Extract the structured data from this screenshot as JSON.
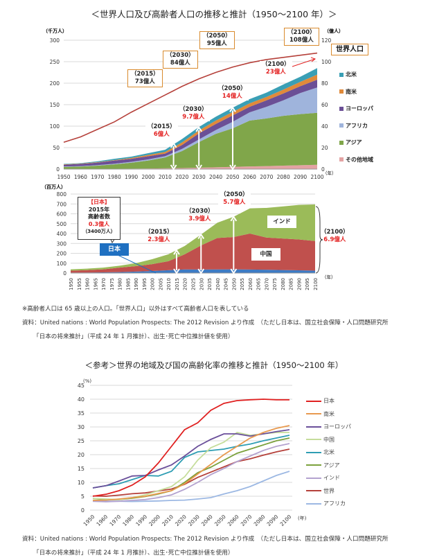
{
  "title1": "＜世界人口及び高齢者人口の推移と推計（1950〜2100 年）＞",
  "chart_data": [
    {
      "type": "area",
      "stacked": true,
      "x": [
        1950,
        1960,
        1970,
        1980,
        1990,
        2000,
        2010,
        2020,
        2030,
        2040,
        2050,
        2060,
        2070,
        2080,
        2090,
        2100
      ],
      "ylabel": "（千万人）",
      "ylim": [
        0,
        300
      ],
      "yticks": [
        0,
        50,
        100,
        150,
        200,
        250,
        300
      ],
      "y2label": "（億人）",
      "y2lim": [
        0,
        120
      ],
      "y2ticks": [
        0,
        20,
        40,
        60,
        80,
        100,
        120
      ],
      "xunit": "（年）",
      "legend_position": "right",
      "series": [
        {
          "name": "その他地域",
          "color": "#e3a3a3",
          "values": [
            0.5,
            0.6,
            0.7,
            0.9,
            1.1,
            1.4,
            1.8,
            2.4,
            3.2,
            4.2,
            5.2,
            6.2,
            7,
            8,
            9,
            10
          ]
        },
        {
          "name": "アジア",
          "color": "#80a64a",
          "values": [
            4.5,
            5.4,
            7.3,
            10.1,
            13.9,
            18.6,
            25.2,
            39.6,
            59.8,
            77.8,
            89.8,
            106.8,
            111,
            116,
            119,
            121
          ]
        },
        {
          "name": "アフリカ",
          "color": "#9fb4dc",
          "values": [
            1,
            1,
            1.2,
            1.5,
            2,
            2.5,
            3,
            5,
            6,
            9,
            15,
            19,
            27,
            36,
            49,
            59
          ]
        },
        {
          "name": "ヨーロッパ",
          "color": "#6b4f96",
          "values": [
            4,
            5,
            6,
            7.5,
            7,
            7.5,
            6,
            9,
            14,
            14,
            15,
            13,
            15,
            16,
            16,
            18
          ]
        },
        {
          "name": "南米",
          "color": "#e08a3a",
          "values": [
            1,
            1,
            1,
            1,
            2,
            3,
            4,
            6,
            7,
            8,
            8,
            8,
            8,
            9,
            10,
            12
          ]
        },
        {
          "name": "北米",
          "color": "#3a9fb5",
          "values": [
            1,
            1,
            2,
            3,
            3,
            4,
            5,
            8,
            8,
            9,
            10,
            10,
            10,
            12,
            12,
            15
          ]
        }
      ],
      "line": {
        "name": "世界人口",
        "axis": "right",
        "color": "#b5403a",
        "x": [
          1950,
          1960,
          1970,
          1980,
          1990,
          2000,
          2010,
          2015,
          2020,
          2030,
          2040,
          2050,
          2060,
          2070,
          2080,
          2090,
          2100
        ],
        "values": [
          25,
          30,
          37,
          44,
          53,
          61,
          69,
          73,
          77,
          84,
          90,
          95,
          99,
          102,
          104,
          106,
          108
        ]
      },
      "callouts": [
        {
          "year": "（2015）",
          "value": "73億人"
        },
        {
          "year": "（2030）",
          "value": "84億人"
        },
        {
          "year": "（2050）",
          "value": "95億人"
        },
        {
          "year": "（2100）",
          "value": "108億人"
        }
      ],
      "series_label": "世界人口",
      "elderly_annotations": [
        {
          "year": "（2015）",
          "value": "6億人"
        },
        {
          "year": "（2030）",
          "value": "9.7億人"
        },
        {
          "year": "（2050）",
          "value": "14億人"
        },
        {
          "year": "（2100）",
          "value": "23億人"
        }
      ]
    },
    {
      "type": "area",
      "stacked": true,
      "x": [
        1950,
        1960,
        1970,
        1980,
        1990,
        2000,
        2010,
        2020,
        2030,
        2040,
        2050,
        2060,
        2070,
        2080,
        2090,
        2100
      ],
      "xticks": [
        1950,
        1955,
        1960,
        1965,
        1970,
        1975,
        1980,
        1985,
        1990,
        1995,
        2000,
        2005,
        2010,
        2015,
        2020,
        2025,
        2030,
        2035,
        2040,
        2045,
        2050,
        2055,
        2060,
        2065,
        2070,
        2075,
        2080,
        2085,
        2090,
        2095,
        2100
      ],
      "ylabel": "（百万人）",
      "ylim": [
        0,
        800
      ],
      "yticks": [
        0,
        100,
        200,
        300,
        400,
        500,
        600,
        700,
        800
      ],
      "xunit": "（年）",
      "series": [
        {
          "name": "日本",
          "color": "#3d7bc4",
          "values": [
            4,
            5,
            7,
            10,
            15,
            21,
            29,
            37,
            36,
            37,
            38,
            36,
            34,
            31,
            28,
            25
          ]
        },
        {
          "name": "中国",
          "color": "#c0504d",
          "values": [
            21,
            25,
            31,
            45,
            55,
            69,
            91,
            153,
            244,
            318,
            327,
            364,
            326,
            319,
            312,
            300
          ]
        },
        {
          "name": "インド",
          "color": "#9bbb59",
          "values": [
            13,
            15,
            17,
            20,
            30,
            50,
            70,
            85,
            110,
            155,
            205,
            255,
            300,
            325,
            350,
            370
          ]
        }
      ],
      "japan_box": {
        "title": "【日本】",
        "year": "2015年",
        "label": "高齢者数",
        "value": "0.3億人",
        "sub": "（3400万人）"
      },
      "annotations": [
        {
          "year": "（2015）",
          "value": "2.3億人"
        },
        {
          "year": "（2030）",
          "value": "3.9億人"
        },
        {
          "year": "（2050）",
          "value": "5.7億人"
        },
        {
          "year": "（2100）",
          "value": "6.9億人"
        }
      ]
    },
    {
      "type": "line",
      "x": [
        1950,
        1960,
        1970,
        1980,
        1990,
        2000,
        2010,
        2020,
        2030,
        2040,
        2050,
        2060,
        2070,
        2080,
        2090,
        2100
      ],
      "ylabel": "(%)",
      "ylim": [
        0,
        45
      ],
      "yticks": [
        0,
        5,
        10,
        15,
        20,
        25,
        30,
        35,
        40,
        45
      ],
      "xunit": "(年)",
      "grid": true,
      "legend_position": "right",
      "series": [
        {
          "name": "日本",
          "color": "#e02020",
          "values": [
            5,
            5.7,
            7,
            9,
            12,
            17,
            23,
            29,
            31.5,
            36,
            38.5,
            39.5,
            39.8,
            40,
            39.8,
            39.8
          ]
        },
        {
          "name": "南米",
          "color": "#e8994e",
          "values": [
            3.5,
            3.6,
            4,
            4.5,
            5,
            6,
            7,
            9.5,
            13,
            16.5,
            20,
            23,
            26,
            28,
            29.5,
            30.5
          ]
        },
        {
          "name": "ヨーロッパ",
          "color": "#6a4f9a",
          "values": [
            8,
            8.8,
            10.5,
            12.3,
            12.5,
            14.5,
            16.3,
            19.5,
            23,
            25.5,
            27.5,
            27.5,
            26.7,
            27.5,
            28.3,
            29
          ]
        },
        {
          "name": "中国",
          "color": "#c5dd9b",
          "values": [
            4.2,
            4,
            3.8,
            4.5,
            5.5,
            7,
            8.5,
            12,
            18,
            22.5,
            24.5,
            28,
            27,
            27.5,
            28,
            28
          ]
        },
        {
          "name": "北米",
          "color": "#2e9db3",
          "values": [
            8,
            8.8,
            9.5,
            11,
            12.5,
            12.3,
            14,
            19,
            21,
            21.5,
            22,
            23,
            23.8,
            25,
            26,
            27
          ]
        },
        {
          "name": "アジア",
          "color": "#7ba13c",
          "values": [
            4.2,
            3.8,
            3.8,
            4.3,
            4.9,
            5.8,
            7,
            10,
            13.5,
            15.5,
            18,
            20.5,
            22,
            23.5,
            25,
            26
          ]
        },
        {
          "name": "インド",
          "color": "#b3a2cf",
          "values": [
            3.2,
            3,
            3.2,
            3.5,
            3.8,
            4.5,
            5.5,
            7.5,
            10,
            12.8,
            15,
            17.5,
            19.5,
            21.5,
            23,
            24
          ]
        },
        {
          "name": "世界",
          "color": "#b5403a",
          "values": [
            5.1,
            5,
            5.4,
            5.9,
            6.2,
            6.9,
            7.6,
            9.3,
            11.8,
            13.7,
            15.6,
            17.5,
            18.5,
            19.8,
            21,
            22
          ]
        },
        {
          "name": "アフリカ",
          "color": "#9cb8e3",
          "values": [
            3.2,
            3.2,
            3.2,
            3.1,
            3.2,
            3.3,
            3.5,
            3.6,
            4,
            4.5,
            5.8,
            7,
            8.5,
            10.5,
            12.5,
            14
          ]
        }
      ]
    }
  ],
  "notes": {
    "note1": "※高齢者人口は 65 歳以上の人口。「世界人口」以外はすべて高齢者人口を表している",
    "source1a": "資料：United nations : World Population Prospects: The 2012 Revision より作成　（ただし日本は、国立社会保障・人口問題研究所",
    "source1b": "「日本の将来推計」（平成 24 年 1 月推計）、出生･死亡中位推計値を使用）",
    "source2a": "資料：United nations : World Population Prospects: The 2012 Revision より作成　（ただし日本は、国立社会保障・人口問題研究所",
    "source2b": "「日本の将来推計」（平成 24 年 1 月推計）、出生･死亡中位推計値を使用）"
  },
  "title2": "＜参考＞世界の地域及び国の高齢化率の推移と推計（1950〜2100 年）"
}
